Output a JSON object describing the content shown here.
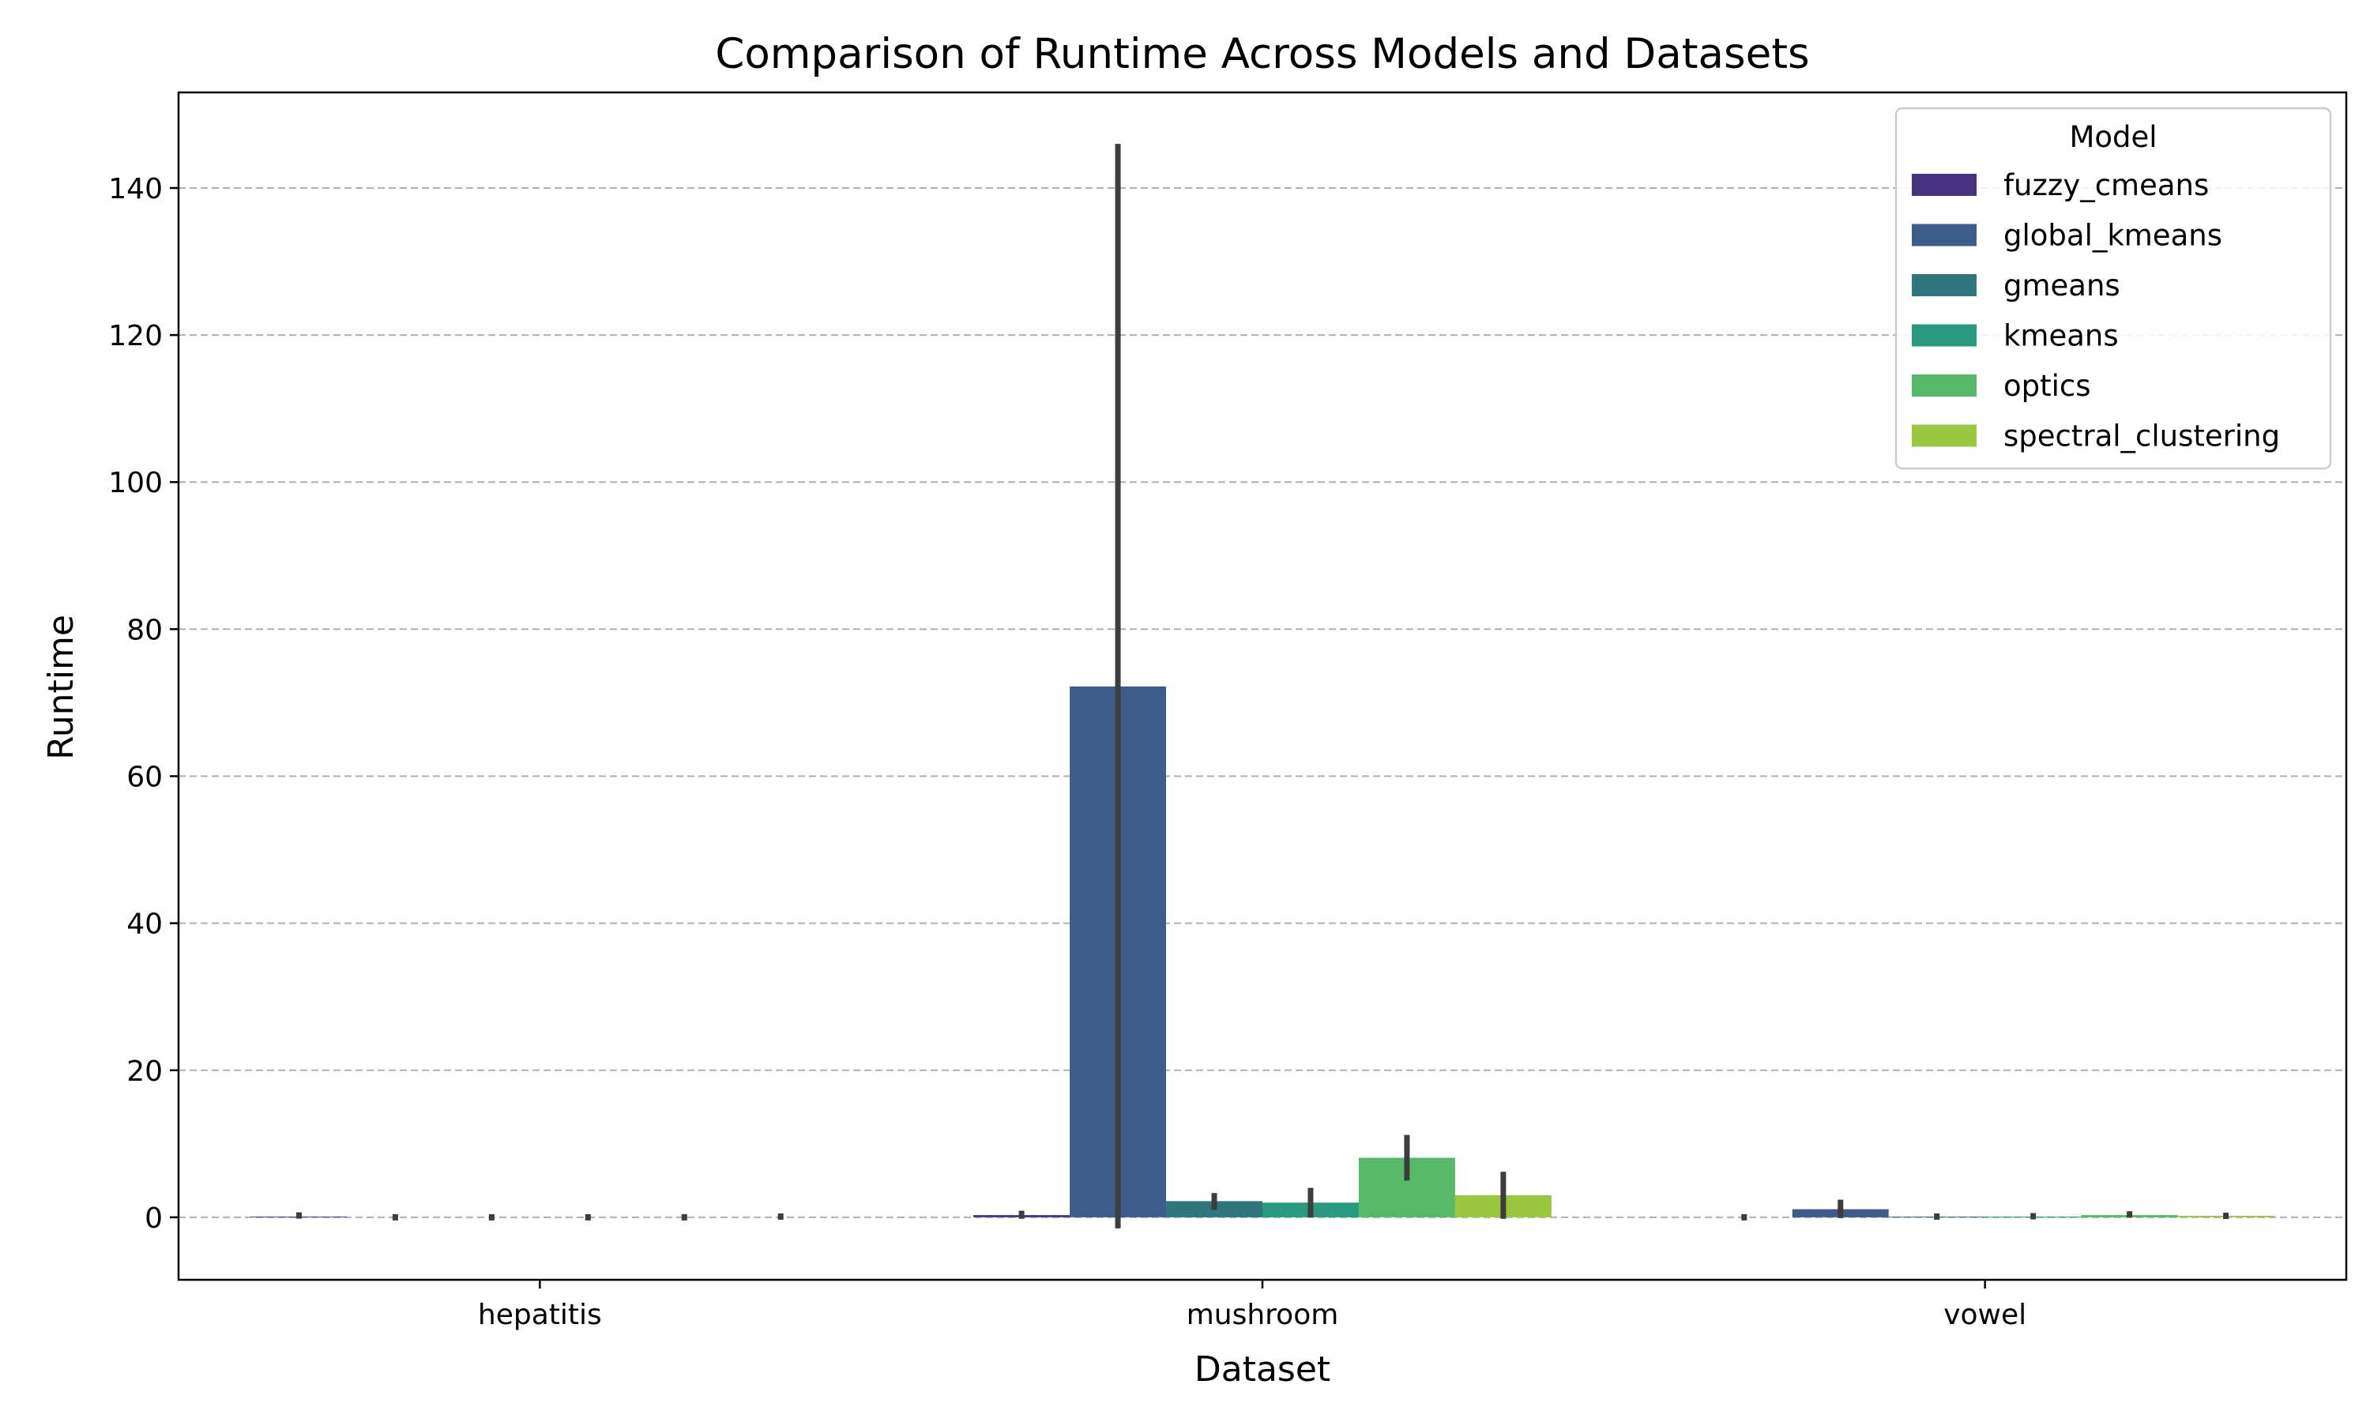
{
  "chart_data": {
    "type": "bar",
    "title": "Comparison of Runtime Across Models and Datasets",
    "xlabel": "Dataset",
    "ylabel": "Runtime",
    "categories": [
      "hepatitis",
      "mushroom",
      "vowel"
    ],
    "ylim": [
      -8.5,
      153
    ],
    "yticks": [
      0,
      20,
      40,
      60,
      80,
      100,
      120,
      140
    ],
    "grid": "horizontal dashed",
    "legend": {
      "title": "Model",
      "placement": "top-right"
    },
    "series": [
      {
        "name": "fuzzy_cmeans",
        "color": "#463480",
        "values": [
          0.1,
          0.3,
          0.0
        ],
        "err_low": [
          -0.1,
          -0.2,
          -0.2
        ],
        "err_high": [
          0.6,
          0.9,
          0.2
        ]
      },
      {
        "name": "global_kmeans",
        "color": "#3e5c8a",
        "values": [
          0.0,
          72.2,
          1.1
        ],
        "err_low": [
          -0.2,
          -1.5,
          -0.1
        ],
        "err_high": [
          0.2,
          146.0,
          2.4
        ]
      },
      {
        "name": "gmeans",
        "color": "#2f757c",
        "values": [
          0.0,
          2.2,
          0.1
        ],
        "err_low": [
          0.0,
          1.0,
          0.0
        ],
        "err_high": [
          0.0,
          3.3,
          0.2
        ]
      },
      {
        "name": "kmeans",
        "color": "#2a9a7f",
        "values": [
          0.0,
          2.0,
          0.1
        ],
        "err_low": [
          0.0,
          0.0,
          -0.2
        ],
        "err_high": [
          0.0,
          4.0,
          0.5
        ]
      },
      {
        "name": "optics",
        "color": "#57b86a",
        "values": [
          0.0,
          8.1,
          0.3
        ],
        "err_low": [
          0.0,
          5.0,
          0.0
        ],
        "err_high": [
          0.0,
          11.2,
          0.8
        ]
      },
      {
        "name": "spectral_clustering",
        "color": "#9ac640",
        "values": [
          0.0,
          3.0,
          0.2
        ],
        "err_low": [
          -0.2,
          -0.2,
          -0.2
        ],
        "err_high": [
          0.4,
          6.2,
          0.6
        ]
      }
    ]
  }
}
